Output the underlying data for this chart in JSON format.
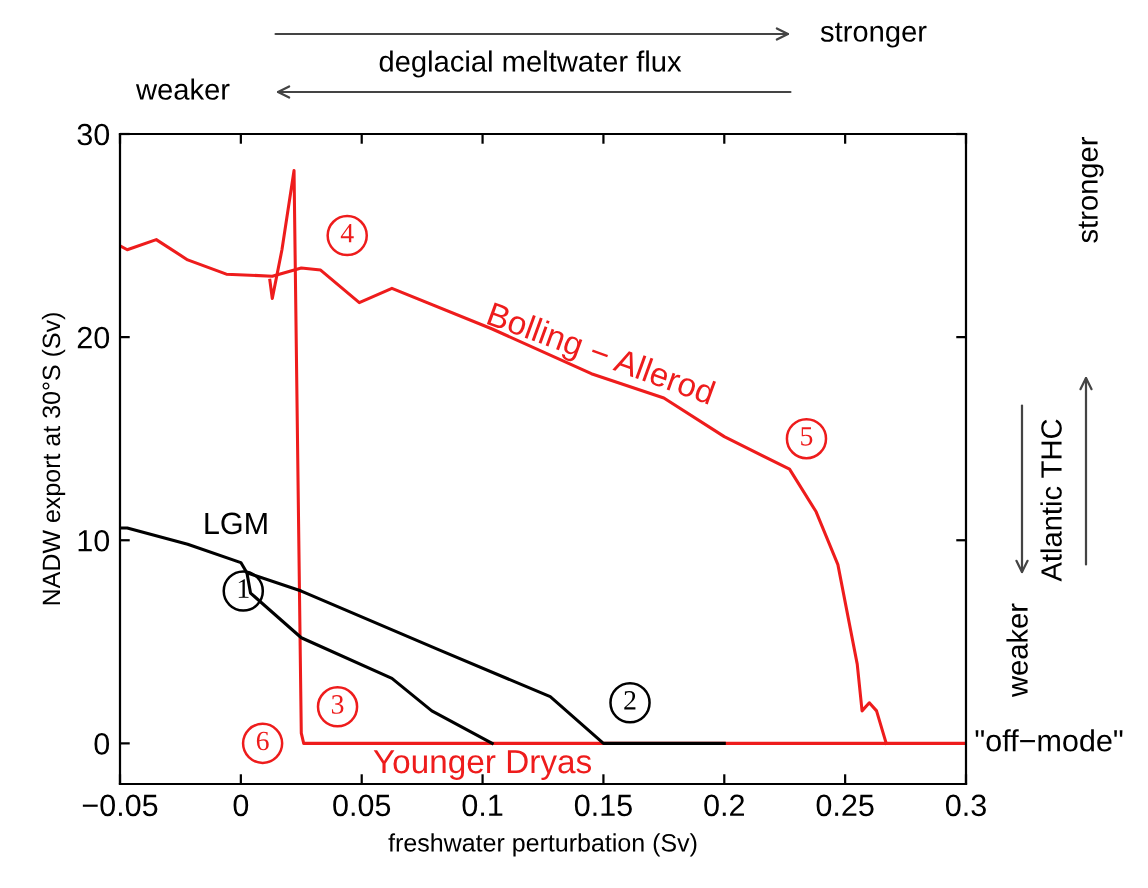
{
  "chart_data": {
    "type": "line",
    "xlabel": "freshwater perturbation (Sv)",
    "ylabel": "NADW export at 30°S (Sv)",
    "xlim": [
      -0.05,
      0.3
    ],
    "ylim": [
      -2,
      30
    ],
    "xticks": [
      {
        "value": -0.05,
        "label": "−0.05"
      },
      0,
      0.05,
      0.1,
      0.15,
      0.2,
      0.25,
      0.3
    ],
    "yticks": [
      0,
      10,
      20,
      30
    ],
    "grid": false,
    "legend": false,
    "marker": "none",
    "line_style": "solid",
    "series": [
      {
        "color": "#ee1c1c",
        "x": [
          -0.05,
          -0.047,
          -0.035,
          -0.022,
          -0.006,
          0.013,
          0.025,
          0.033,
          0.049,
          0.0625,
          0.104,
          0.145,
          0.175,
          0.2,
          0.227,
          0.238,
          0.247,
          0.255,
          0.257,
          0.26,
          0.263,
          0.267
        ],
        "values": [
          24.5,
          24.3,
          24.8,
          23.8,
          23.1,
          23.0,
          23.4,
          23.3,
          21.7,
          22.4,
          20.4,
          18.2,
          17.0,
          15.1,
          13.5,
          11.4,
          8.8,
          3.9,
          1.6,
          2.0,
          1.6,
          0
        ]
      },
      {
        "color": "#ee1c1c",
        "x": [
          0.012,
          0.013,
          0.017,
          0.022,
          0.025,
          0.026,
          0.3
        ],
        "values": [
          22.8,
          21.9,
          24.3,
          28.2,
          0.5,
          0,
          0
        ]
      },
      {
        "color": "#000000",
        "x": [
          -0.05,
          -0.047,
          -0.022,
          0,
          0.0025,
          0.025,
          0.082,
          0.128,
          0.15,
          0.2
        ],
        "values": [
          10.6,
          10.6,
          9.8,
          8.9,
          8.4,
          7.5,
          4.6,
          2.3,
          0,
          0
        ]
      },
      {
        "color": "#000000",
        "x": [
          0.0025,
          0.004,
          0.025,
          0.0625,
          0.079,
          0.104
        ],
        "values": [
          8.4,
          7.4,
          5.2,
          3.2,
          1.6,
          0
        ]
      }
    ],
    "annotations": [
      {
        "text": "1",
        "x": 0.001,
        "y": 7.5
      },
      {
        "text": "2",
        "x": 0.161,
        "y": 2.0
      },
      {
        "text": "3",
        "x": 0.04,
        "y": 1.8
      },
      {
        "text": "4",
        "x": 0.044,
        "y": 25.0
      },
      {
        "text": "5",
        "x": 0.234,
        "y": 15.0
      },
      {
        "text": "6",
        "x": 0.009,
        "y": 0
      },
      {
        "text": "Younger Dryas",
        "x": 0.1,
        "y": 0
      },
      {
        "text": "\"off−mode\"",
        "x": 0.3,
        "y": 0
      },
      "LGM",
      "Bolling − Allerod",
      "deglacial meltwater flux",
      "stronger",
      "weaker",
      "Atlantic THC",
      "weaker",
      "stronger"
    ]
  }
}
